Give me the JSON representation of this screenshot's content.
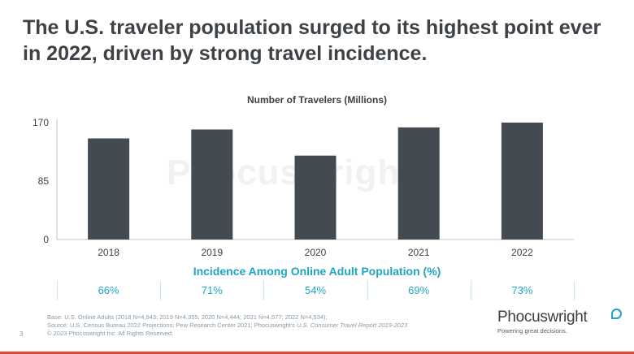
{
  "headline": "The U.S. traveler population surged to its highest point ever in 2022, driven by strong travel incidence.",
  "watermark": "Phocuswright",
  "chart_data": {
    "type": "bar",
    "title": "Number of Travelers (Millions)",
    "categories": [
      "2018",
      "2019",
      "2020",
      "2021",
      "2022"
    ],
    "values": [
      147,
      160,
      122,
      163,
      170
    ],
    "ylim": [
      0,
      170
    ],
    "yticks": [
      0,
      85,
      170
    ],
    "grid": false,
    "colors": {
      "bar": "#434a51"
    }
  },
  "incidence": {
    "title": "Incidence Among Online Adult Population (%)",
    "values": [
      "66%",
      "71%",
      "54%",
      "69%",
      "73%"
    ]
  },
  "footer": {
    "line1": "Base: U.S. Online Adults (2018 N=4,943; 2019 N=4,355; 2020 N=4,444; 2021 N=4,577; 2022 N=4,534);",
    "line2_prefix": "Source: U.S. Census Bureau 2022 Projections; Pew Research Center 2021; Phocuswright's ",
    "line2_italic": "U.S. Consumer Travel Report 2019-2023",
    "line3": "© 2023 Phocuswright Inc. All Rights Reserved."
  },
  "page_number": "3",
  "brand": {
    "name": "Phocuswright",
    "tagline": "Powering great decisions."
  },
  "colors": {
    "accent": "#1fa5c6",
    "bar": "#434a51",
    "bottom_rule": "#e8463a"
  }
}
